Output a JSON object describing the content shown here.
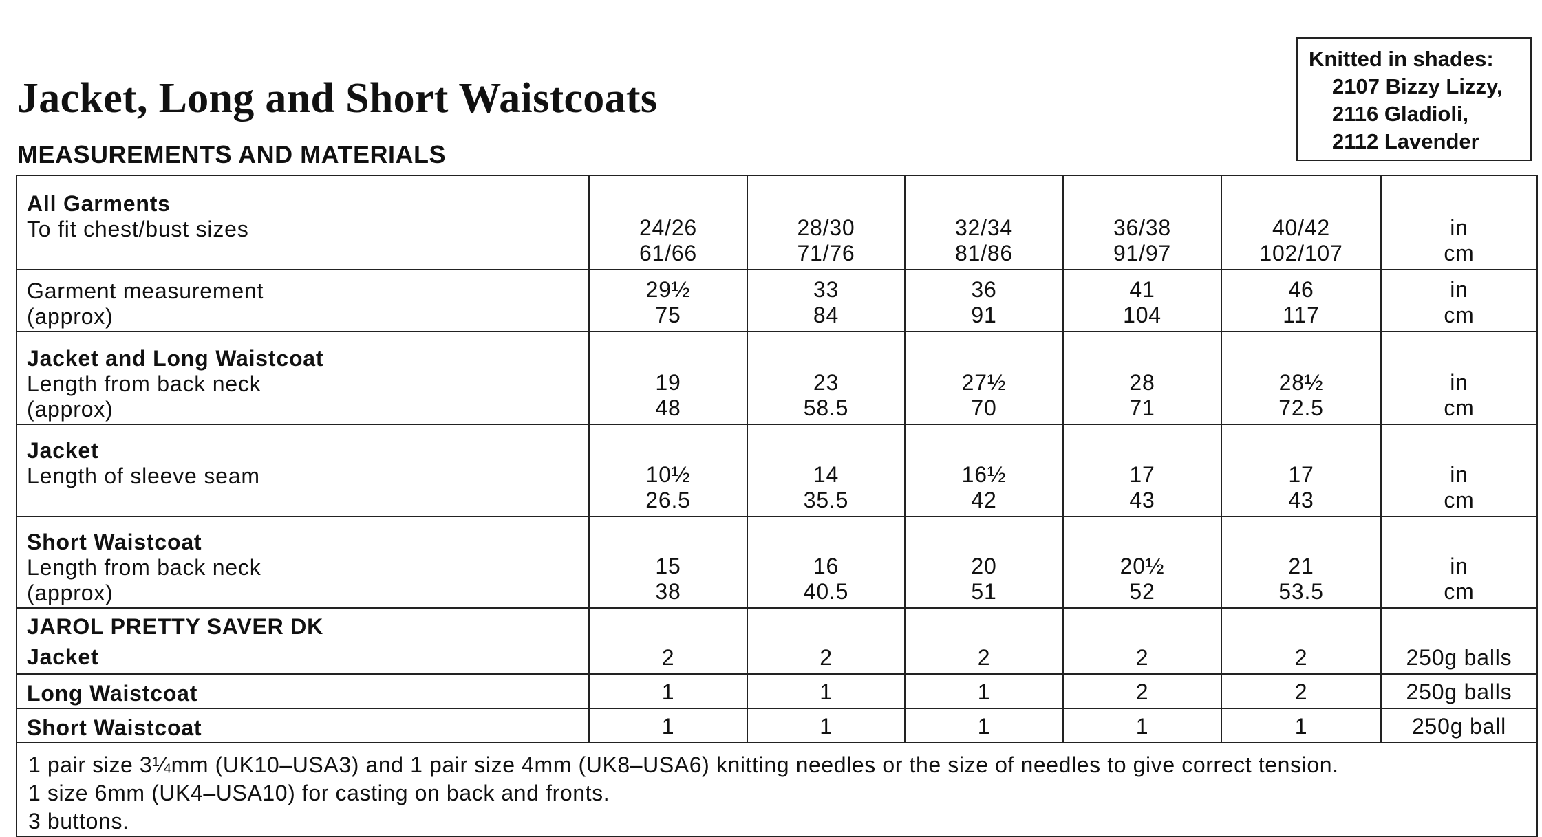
{
  "header": {
    "title": "Jacket, Long and Short Waistcoats",
    "subtitle": "MEASUREMENTS AND MATERIALS"
  },
  "shades": {
    "heading": "Knitted in shades:",
    "items": [
      "2107 Bizzy Lizzy,",
      "2116 Gladioli,",
      "2112 Lavender"
    ]
  },
  "table": {
    "rows": [
      {
        "heading": "All Garments",
        "labels": [
          "To fit chest/bust sizes"
        ],
        "values": [
          [
            "24/26",
            "61/66"
          ],
          [
            "28/30",
            "71/76"
          ],
          [
            "32/34",
            "81/86"
          ],
          [
            "36/38",
            "91/97"
          ],
          [
            "40/42",
            "102/107"
          ]
        ],
        "unit": [
          "in",
          "cm"
        ]
      },
      {
        "heading": "",
        "labels": [
          "Garment measurement",
          "(approx)"
        ],
        "values": [
          [
            "29½",
            "75"
          ],
          [
            "33",
            "84"
          ],
          [
            "36",
            "91"
          ],
          [
            "41",
            "104"
          ],
          [
            "46",
            "117"
          ]
        ],
        "unit": [
          "in",
          "cm"
        ]
      },
      {
        "heading": "Jacket and Long Waistcoat",
        "labels": [
          "Length from back neck",
          "(approx)"
        ],
        "values": [
          [
            "19",
            "48"
          ],
          [
            "23",
            "58.5"
          ],
          [
            "27½",
            "70"
          ],
          [
            "28",
            "71"
          ],
          [
            "28½",
            "72.5"
          ]
        ],
        "unit": [
          "in",
          "cm"
        ]
      },
      {
        "heading": "Jacket",
        "labels": [
          "Length of sleeve seam"
        ],
        "values": [
          [
            "10½",
            "26.5"
          ],
          [
            "14",
            "35.5"
          ],
          [
            "16½",
            "42"
          ],
          [
            "17",
            "43"
          ],
          [
            "17",
            "43"
          ]
        ],
        "unit": [
          "in",
          "cm"
        ]
      },
      {
        "heading": "Short Waistcoat",
        "labels": [
          "Length from back neck",
          "(approx)"
        ],
        "values": [
          [
            "15",
            "38"
          ],
          [
            "16",
            "40.5"
          ],
          [
            "20",
            "51"
          ],
          [
            "20½",
            "52"
          ],
          [
            "21",
            "53.5"
          ]
        ],
        "unit": [
          "in",
          "cm"
        ]
      },
      {
        "heading": "JAROL PRETTY SAVER DK",
        "labels": [
          "Jacket"
        ],
        "values": [
          [
            "2"
          ],
          [
            "2"
          ],
          [
            "2"
          ],
          [
            "2"
          ],
          [
            "2"
          ]
        ],
        "unit": [
          "250g balls"
        ]
      },
      {
        "heading": "",
        "labels": [
          "Long Waistcoat"
        ],
        "values": [
          [
            "1"
          ],
          [
            "1"
          ],
          [
            "1"
          ],
          [
            "2"
          ],
          [
            "2"
          ]
        ],
        "unit": [
          "250g balls"
        ]
      },
      {
        "heading": "",
        "labels": [
          "Short Waistcoat"
        ],
        "values": [
          [
            "1"
          ],
          [
            "1"
          ],
          [
            "1"
          ],
          [
            "1"
          ],
          [
            "1"
          ]
        ],
        "unit": [
          "250g ball"
        ]
      }
    ]
  },
  "footer": {
    "lines": [
      "1 pair size 3¼mm (UK10–USA3) and 1 pair size 4mm (UK8–USA6) knitting needles or the size of needles to give correct tension.",
      "1 size 6mm (UK4–USA10) for casting on back and fronts.",
      "3 buttons."
    ]
  }
}
